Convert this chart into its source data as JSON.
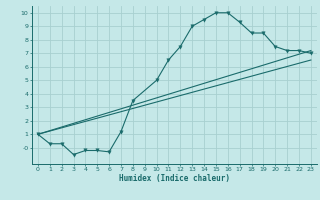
{
  "xlabel": "Humidex (Indice chaleur)",
  "bg_color": "#c5e8e8",
  "grid_color": "#a8d0d0",
  "line_color": "#1a6b6b",
  "xlim": [
    -0.5,
    23.5
  ],
  "ylim": [
    -1.2,
    10.5
  ],
  "xticks": [
    0,
    1,
    2,
    3,
    4,
    5,
    6,
    7,
    8,
    9,
    10,
    11,
    12,
    13,
    14,
    15,
    16,
    17,
    18,
    19,
    20,
    21,
    22,
    23
  ],
  "yticks": [
    0,
    1,
    2,
    3,
    4,
    5,
    6,
    7,
    8,
    9,
    10
  ],
  "ytick_labels": [
    "-0",
    "1",
    "2",
    "3",
    "4",
    "5",
    "6",
    "7",
    "8",
    "9",
    "10"
  ],
  "curve1_x": [
    0,
    1,
    2,
    3,
    4,
    5,
    6,
    7,
    8,
    10,
    11,
    12,
    13,
    14,
    15,
    16,
    17,
    18,
    19,
    20,
    21,
    22,
    23
  ],
  "curve1_y": [
    1,
    0.3,
    0.3,
    -0.5,
    -0.2,
    -0.2,
    -0.3,
    1.2,
    3.5,
    5.0,
    6.5,
    7.5,
    9.0,
    9.5,
    10.0,
    10.0,
    9.3,
    8.5,
    8.5,
    7.5,
    7.2,
    7.2,
    7.0
  ],
  "line2_x": [
    0,
    23
  ],
  "line2_y": [
    1.0,
    7.2
  ],
  "line3_x": [
    0,
    23
  ],
  "line3_y": [
    1.0,
    6.5
  ]
}
